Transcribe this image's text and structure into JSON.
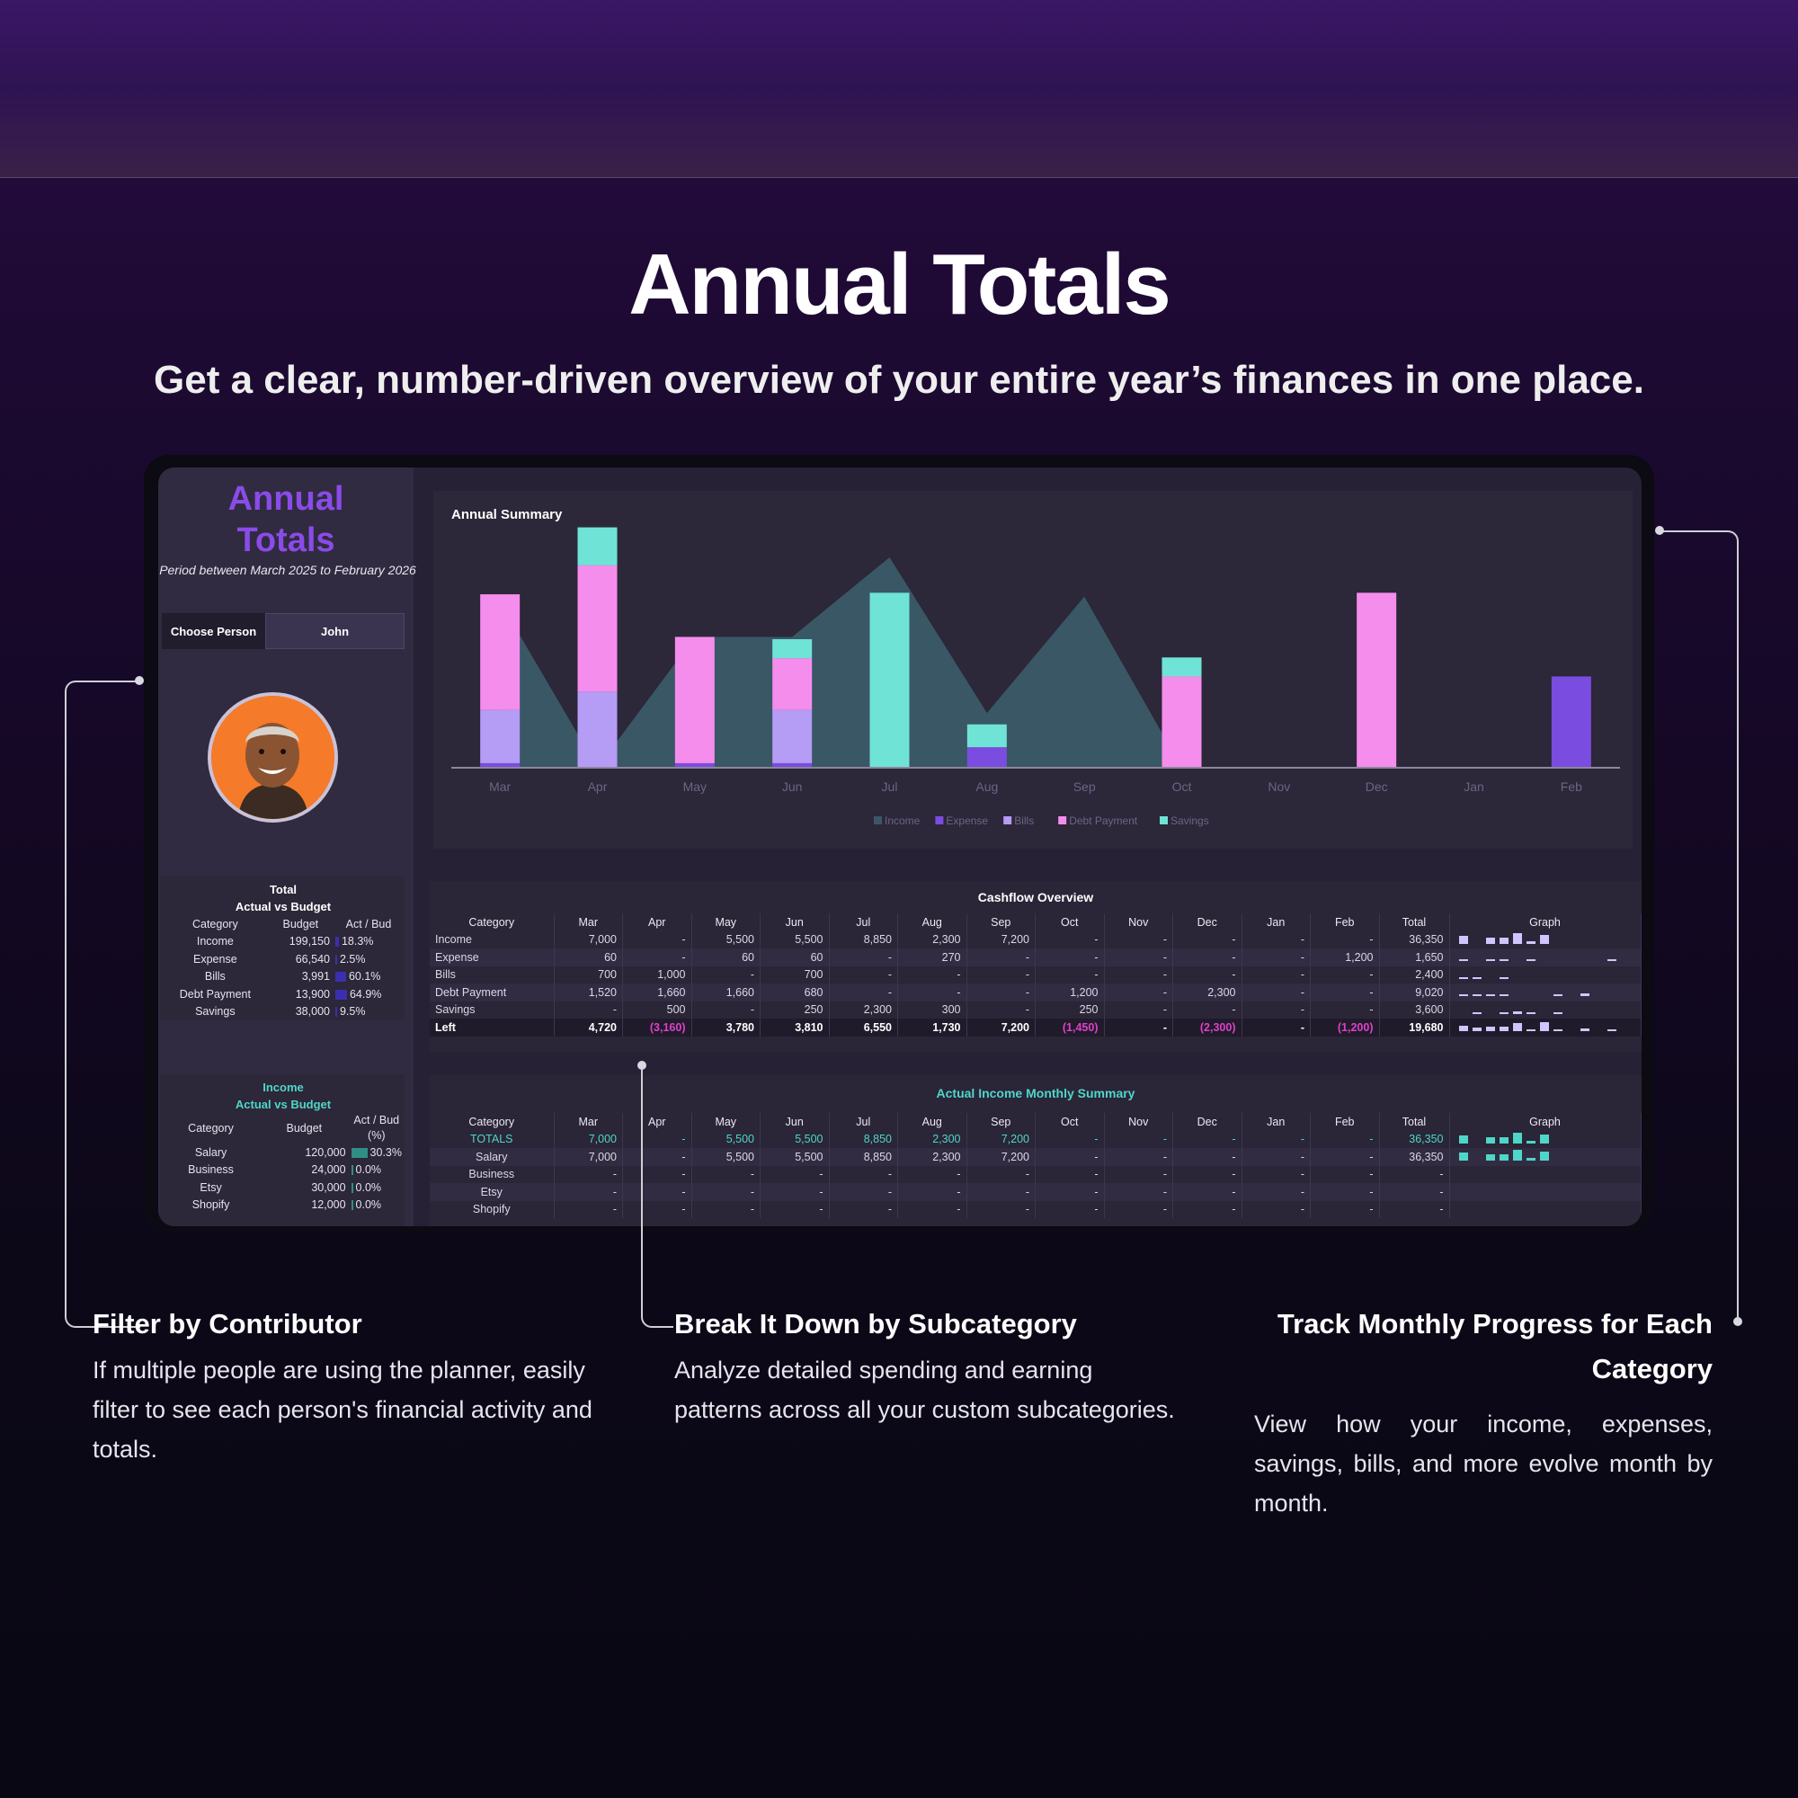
{
  "hero": {
    "title": "Annual Totals",
    "subtitle": "Get a clear, number-driven overview of your entire year’s finances in one place."
  },
  "sidebar": {
    "title_line1": "Annual",
    "title_line2": "Totals",
    "period": "Period between March 2025 to February 2026",
    "choose_label": "Choose Person",
    "choose_value": "John",
    "avatar_icon": "person-avatar-icon"
  },
  "total_table": {
    "title_line1": "Total",
    "title_line2": "Actual vs Budget",
    "headers": [
      "Category",
      "Budget",
      "Act / Bud"
    ],
    "rows": [
      {
        "category": "Income",
        "budget": "199,150",
        "pct": "18.3%",
        "frac": 0.183
      },
      {
        "category": "Expense",
        "budget": "66,540",
        "pct": "2.5%",
        "frac": 0.025
      },
      {
        "category": "Bills",
        "budget": "3,991",
        "pct": "60.1%",
        "frac": 0.601
      },
      {
        "category": "Debt Payment",
        "budget": "13,900",
        "pct": "64.9%",
        "frac": 0.649
      },
      {
        "category": "Savings",
        "budget": "38,000",
        "pct": "9.5%",
        "frac": 0.095
      }
    ]
  },
  "income_table": {
    "title_line1": "Income",
    "title_line2": "Actual vs Budget",
    "headers": [
      "Category",
      "Budget",
      "Act / Bud (%)"
    ],
    "rows": [
      {
        "category": "Salary",
        "budget": "120,000",
        "pct": "30.3%",
        "frac": 0.303
      },
      {
        "category": "Business",
        "budget": "24,000",
        "pct": "0.0%",
        "frac": 0
      },
      {
        "category": "Etsy",
        "budget": "30,000",
        "pct": "0.0%",
        "frac": 0
      },
      {
        "category": "Shopify",
        "budget": "12,000",
        "pct": "0.0%",
        "frac": 0
      }
    ]
  },
  "chart_data": {
    "type": "bar",
    "title": "Annual Summary",
    "categories": [
      "Mar",
      "Apr",
      "May",
      "Jun",
      "Jul",
      "Aug",
      "Sep",
      "Oct",
      "Nov",
      "Dec",
      "Jan",
      "Feb"
    ],
    "series": [
      {
        "name": "Income",
        "type": "area",
        "color": "#3a5766",
        "values": [
          7000,
          0,
          5500,
          5500,
          8850,
          2300,
          7200,
          0,
          0,
          0,
          0,
          0
        ]
      },
      {
        "name": "Expense",
        "color": "#7b4ce0",
        "values": [
          60,
          0,
          60,
          60,
          0,
          270,
          0,
          0,
          0,
          0,
          0,
          1200
        ]
      },
      {
        "name": "Bills",
        "color": "#b59cf5",
        "values": [
          700,
          1000,
          0,
          700,
          0,
          0,
          0,
          0,
          0,
          0,
          0,
          0
        ]
      },
      {
        "name": "Debt Payment",
        "color": "#f58ded",
        "values": [
          1520,
          1660,
          1660,
          680,
          0,
          0,
          0,
          1200,
          0,
          2300,
          0,
          0
        ]
      },
      {
        "name": "Savings",
        "color": "#6fe3d6",
        "values": [
          0,
          500,
          0,
          250,
          2300,
          300,
          0,
          250,
          0,
          0,
          0,
          0
        ]
      }
    ],
    "ylim": [
      0,
      9000
    ],
    "legend": "bottom"
  },
  "cashflow": {
    "title": "Cashflow Overview",
    "headers": [
      "Category",
      "Mar",
      "Apr",
      "May",
      "Jun",
      "Jul",
      "Aug",
      "Sep",
      "Oct",
      "Nov",
      "Dec",
      "Jan",
      "Feb",
      "Total",
      "Graph"
    ],
    "rows": [
      {
        "cells": [
          "Income",
          "7,000",
          "-",
          "5,500",
          "5,500",
          "8,850",
          "2,300",
          "7,200",
          "-",
          "-",
          "-",
          "-",
          "-",
          "36,350"
        ]
      },
      {
        "cells": [
          "Expense",
          "60",
          "-",
          "60",
          "60",
          "-",
          "270",
          "-",
          "-",
          "-",
          "-",
          "-",
          "1,200",
          "1,650"
        ]
      },
      {
        "cells": [
          "Bills",
          "700",
          "1,000",
          "-",
          "700",
          "-",
          "-",
          "-",
          "-",
          "-",
          "-",
          "-",
          "-",
          "2,400"
        ]
      },
      {
        "cells": [
          "Debt Payment",
          "1,520",
          "1,660",
          "1,660",
          "680",
          "-",
          "-",
          "-",
          "1,200",
          "-",
          "2,300",
          "-",
          "-",
          "9,020"
        ]
      },
      {
        "cells": [
          "Savings",
          "-",
          "500",
          "-",
          "250",
          "2,300",
          "300",
          "-",
          "250",
          "-",
          "-",
          "-",
          "-",
          "3,600"
        ]
      },
      {
        "cells": [
          "Left",
          "4,720",
          "(3,160)",
          "3,780",
          "3,810",
          "6,550",
          "1,730",
          "7,200",
          "(1,450)",
          "-",
          "(2,300)",
          "-",
          "(1,200)",
          "19,680"
        ]
      }
    ]
  },
  "income_summary": {
    "title": "Actual Income Monthly Summary",
    "headers": [
      "Category",
      "Mar",
      "Apr",
      "May",
      "Jun",
      "Jul",
      "Aug",
      "Sep",
      "Oct",
      "Nov",
      "Dec",
      "Jan",
      "Feb",
      "Total",
      "Graph"
    ],
    "rows": [
      {
        "cells": [
          "TOTALS",
          "7,000",
          "-",
          "5,500",
          "5,500",
          "8,850",
          "2,300",
          "7,200",
          "-",
          "-",
          "-",
          "-",
          "-",
          "36,350"
        ]
      },
      {
        "cells": [
          "Salary",
          "7,000",
          "-",
          "5,500",
          "5,500",
          "8,850",
          "2,300",
          "7,200",
          "-",
          "-",
          "-",
          "-",
          "-",
          "36,350"
        ]
      },
      {
        "cells": [
          "Business",
          "-",
          "-",
          "-",
          "-",
          "-",
          "-",
          "-",
          "-",
          "-",
          "-",
          "-",
          "-",
          "-"
        ]
      },
      {
        "cells": [
          "Etsy",
          "-",
          "-",
          "-",
          "-",
          "-",
          "-",
          "-",
          "-",
          "-",
          "-",
          "-",
          "-",
          "-"
        ]
      },
      {
        "cells": [
          "Shopify",
          "-",
          "-",
          "-",
          "-",
          "-",
          "-",
          "-",
          "-",
          "-",
          "-",
          "-",
          "-",
          "-"
        ]
      }
    ]
  },
  "features": [
    {
      "title": "Filter by Contributor",
      "body": "If multiple people are using the planner, easily filter to see each person's financial activity and totals."
    },
    {
      "title": "Break It Down by Subcategory",
      "body": "Analyze detailed spending and earning patterns across all your custom subcategories."
    },
    {
      "title": "Track Monthly Progress for Each Category",
      "body": "View how your income, expenses, savings, bills, and more evolve month by month."
    }
  ]
}
